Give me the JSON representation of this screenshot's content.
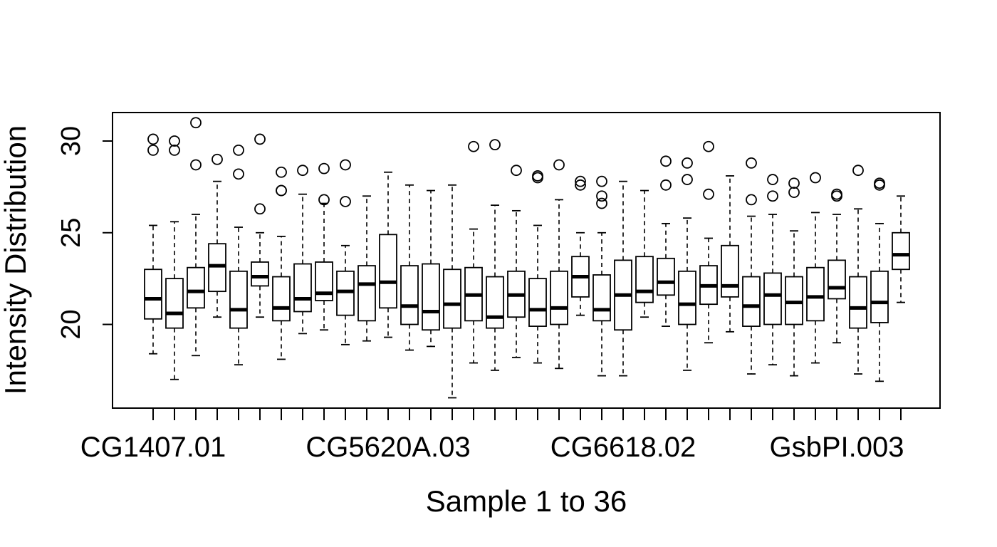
{
  "chart_data": {
    "type": "boxplot",
    "title": "",
    "xlabel": "Sample 1 to 36",
    "ylabel": "Intensity Distribution",
    "ylim": [
      15.5,
      31.7
    ],
    "yticks": [
      20,
      25,
      30
    ],
    "xtick_labels": [
      {
        "sample": 1,
        "label": "CG1407.01"
      },
      {
        "sample": 12,
        "label": "CG5620A.03"
      },
      {
        "sample": 23,
        "label": "CG6618.02"
      },
      {
        "sample": 33,
        "label": "GsbPI.003"
      }
    ],
    "boxes": [
      {
        "sample": 1,
        "whisker_low": 18.4,
        "q1": 20.3,
        "median": 21.4,
        "q3": 23.0,
        "whisker_high": 25.4,
        "outliers": [
          29.5,
          30.1
        ]
      },
      {
        "sample": 2,
        "whisker_low": 17.0,
        "q1": 19.8,
        "median": 20.6,
        "q3": 22.5,
        "whisker_high": 25.6,
        "outliers": [
          29.5,
          30.0
        ]
      },
      {
        "sample": 3,
        "whisker_low": 18.3,
        "q1": 20.9,
        "median": 21.8,
        "q3": 23.1,
        "whisker_high": 26.0,
        "outliers": [
          28.7,
          31.0
        ]
      },
      {
        "sample": 4,
        "whisker_low": 20.4,
        "q1": 21.8,
        "median": 23.2,
        "q3": 24.4,
        "whisker_high": 27.8,
        "outliers": [
          29.0
        ]
      },
      {
        "sample": 5,
        "whisker_low": 17.8,
        "q1": 19.8,
        "median": 20.8,
        "q3": 22.9,
        "whisker_high": 25.3,
        "outliers": [
          28.2,
          29.5
        ]
      },
      {
        "sample": 6,
        "whisker_low": 20.4,
        "q1": 22.1,
        "median": 22.6,
        "q3": 23.4,
        "whisker_high": 25.0,
        "outliers": [
          26.3,
          30.1
        ]
      },
      {
        "sample": 7,
        "whisker_low": 18.1,
        "q1": 20.2,
        "median": 20.9,
        "q3": 22.6,
        "whisker_high": 24.8,
        "outliers": [
          27.3,
          27.3,
          28.3
        ]
      },
      {
        "sample": 8,
        "whisker_low": 19.5,
        "q1": 20.7,
        "median": 21.4,
        "q3": 23.3,
        "whisker_high": 27.1,
        "outliers": [
          28.4
        ]
      },
      {
        "sample": 9,
        "whisker_low": 19.7,
        "q1": 21.3,
        "median": 21.7,
        "q3": 23.4,
        "whisker_high": 26.6,
        "outliers": [
          26.8,
          28.5
        ]
      },
      {
        "sample": 10,
        "whisker_low": 18.9,
        "q1": 20.5,
        "median": 21.8,
        "q3": 22.9,
        "whisker_high": 24.3,
        "outliers": [
          26.7,
          28.7
        ]
      },
      {
        "sample": 11,
        "whisker_low": 19.1,
        "q1": 20.2,
        "median": 22.2,
        "q3": 23.2,
        "whisker_high": 27.0,
        "outliers": []
      },
      {
        "sample": 12,
        "whisker_low": 19.3,
        "q1": 20.9,
        "median": 22.3,
        "q3": 24.9,
        "whisker_high": 28.3,
        "outliers": []
      },
      {
        "sample": 13,
        "whisker_low": 18.6,
        "q1": 20.0,
        "median": 21.0,
        "q3": 23.2,
        "whisker_high": 27.6,
        "outliers": []
      },
      {
        "sample": 14,
        "whisker_low": 18.8,
        "q1": 19.7,
        "median": 20.7,
        "q3": 23.3,
        "whisker_high": 27.3,
        "outliers": []
      },
      {
        "sample": 15,
        "whisker_low": 16.0,
        "q1": 19.8,
        "median": 21.1,
        "q3": 23.0,
        "whisker_high": 27.6,
        "outliers": []
      },
      {
        "sample": 16,
        "whisker_low": 17.9,
        "q1": 20.2,
        "median": 21.6,
        "q3": 23.1,
        "whisker_high": 25.2,
        "outliers": [
          29.7
        ]
      },
      {
        "sample": 17,
        "whisker_low": 17.5,
        "q1": 19.8,
        "median": 20.4,
        "q3": 22.6,
        "whisker_high": 26.5,
        "outliers": [
          29.8
        ]
      },
      {
        "sample": 18,
        "whisker_low": 18.2,
        "q1": 20.4,
        "median": 21.6,
        "q3": 22.9,
        "whisker_high": 26.2,
        "outliers": [
          28.4
        ]
      },
      {
        "sample": 19,
        "whisker_low": 17.9,
        "q1": 19.9,
        "median": 20.8,
        "q3": 22.5,
        "whisker_high": 25.4,
        "outliers": [
          28.0,
          28.1
        ]
      },
      {
        "sample": 20,
        "whisker_low": 17.6,
        "q1": 20.0,
        "median": 20.9,
        "q3": 22.9,
        "whisker_high": 26.8,
        "outliers": [
          28.7
        ]
      },
      {
        "sample": 21,
        "whisker_low": 20.5,
        "q1": 21.5,
        "median": 22.6,
        "q3": 23.7,
        "whisker_high": 25.0,
        "outliers": [
          27.6,
          27.8
        ]
      },
      {
        "sample": 22,
        "whisker_low": 17.2,
        "q1": 20.2,
        "median": 20.8,
        "q3": 22.7,
        "whisker_high": 25.0,
        "outliers": [
          26.6,
          27.0,
          27.8
        ]
      },
      {
        "sample": 23,
        "whisker_low": 17.2,
        "q1": 19.7,
        "median": 21.6,
        "q3": 23.5,
        "whisker_high": 27.8,
        "outliers": []
      },
      {
        "sample": 24,
        "whisker_low": 20.4,
        "q1": 21.2,
        "median": 21.8,
        "q3": 23.7,
        "whisker_high": 27.3,
        "outliers": []
      },
      {
        "sample": 25,
        "whisker_low": 19.9,
        "q1": 21.6,
        "median": 22.3,
        "q3": 23.6,
        "whisker_high": 25.5,
        "outliers": [
          27.6,
          28.9
        ]
      },
      {
        "sample": 26,
        "whisker_low": 17.5,
        "q1": 20.0,
        "median": 21.1,
        "q3": 22.9,
        "whisker_high": 25.8,
        "outliers": [
          27.9,
          28.8
        ]
      },
      {
        "sample": 27,
        "whisker_low": 19.0,
        "q1": 21.1,
        "median": 22.1,
        "q3": 23.2,
        "whisker_high": 24.7,
        "outliers": [
          27.1,
          29.7
        ]
      },
      {
        "sample": 28,
        "whisker_low": 19.6,
        "q1": 21.5,
        "median": 22.1,
        "q3": 24.3,
        "whisker_high": 28.1,
        "outliers": []
      },
      {
        "sample": 29,
        "whisker_low": 17.3,
        "q1": 19.9,
        "median": 21.0,
        "q3": 22.6,
        "whisker_high": 25.9,
        "outliers": [
          26.8,
          28.8
        ]
      },
      {
        "sample": 30,
        "whisker_low": 17.8,
        "q1": 20.0,
        "median": 21.6,
        "q3": 22.8,
        "whisker_high": 26.0,
        "outliers": [
          27.0,
          27.9
        ]
      },
      {
        "sample": 31,
        "whisker_low": 17.2,
        "q1": 20.0,
        "median": 21.2,
        "q3": 22.6,
        "whisker_high": 25.1,
        "outliers": [
          27.2,
          27.7
        ]
      },
      {
        "sample": 32,
        "whisker_low": 17.9,
        "q1": 20.2,
        "median": 21.5,
        "q3": 23.1,
        "whisker_high": 26.1,
        "outliers": [
          28.0
        ]
      },
      {
        "sample": 33,
        "whisker_low": 19.0,
        "q1": 21.4,
        "median": 22.0,
        "q3": 23.5,
        "whisker_high": 26.0,
        "outliers": [
          27.0,
          27.1
        ]
      },
      {
        "sample": 34,
        "whisker_low": 17.3,
        "q1": 19.8,
        "median": 20.9,
        "q3": 22.6,
        "whisker_high": 26.3,
        "outliers": [
          28.4
        ]
      },
      {
        "sample": 35,
        "whisker_low": 16.9,
        "q1": 20.1,
        "median": 21.2,
        "q3": 22.9,
        "whisker_high": 25.5,
        "outliers": [
          27.6,
          27.7
        ]
      },
      {
        "sample": 36,
        "whisker_low": 21.2,
        "q1": 23.0,
        "median": 23.8,
        "q3": 25.0,
        "whisker_high": 27.0,
        "outliers": []
      }
    ]
  }
}
